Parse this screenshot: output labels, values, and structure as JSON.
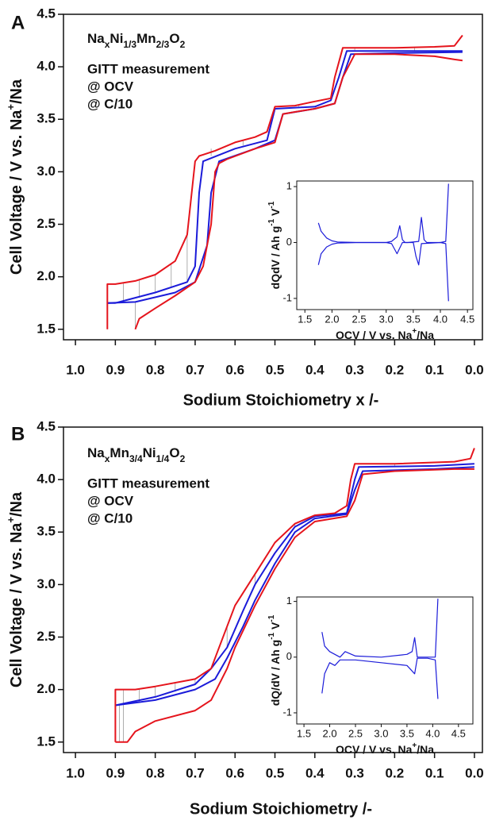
{
  "chart_data": [
    {
      "type": "line",
      "panel_label": "A",
      "formula_parts": [
        "Na",
        "x",
        "Ni",
        "1/3",
        "Mn",
        "2/3",
        "O",
        "2"
      ],
      "x_label": "Sodium Stoichiometry x /-",
      "y_label_parts": [
        "Cell Voltage / V vs. Na",
        "+",
        "/Na"
      ],
      "xlim": [
        1.03,
        -0.02
      ],
      "ylim": [
        1.4,
        4.5
      ],
      "xticks": [
        {
          "value": 1,
          "label": "1.0"
        },
        0.9,
        0.8,
        0.7,
        0.6,
        0.5,
        0.4,
        0.3,
        0.2,
        0.1,
        {
          "value": 0,
          "label": "0.0"
        }
      ],
      "yticks": [
        1.5,
        {
          "value": 2,
          "label": "2.0"
        },
        2.5,
        {
          "value": 3,
          "label": "3.0"
        },
        3.5,
        {
          "value": 4,
          "label": "4.0"
        },
        4.5
      ],
      "series": [
        {
          "name": "GITT measurement",
          "color": "#9a9a9a",
          "lines": [
            {
              "x": [
                0.88,
                0.88
              ],
              "values": [
                1.77,
                1.94
              ]
            },
            {
              "x": [
                0.84,
                0.84
              ],
              "values": [
                1.8,
                1.97
              ]
            },
            {
              "x": [
                0.8,
                0.8
              ],
              "values": [
                1.85,
                2.02
              ]
            },
            {
              "x": [
                0.76,
                0.76
              ],
              "values": [
                1.9,
                2.12
              ]
            },
            {
              "x": [
                0.72,
                0.72
              ],
              "values": [
                1.95,
                2.4
              ]
            },
            {
              "x": [
                0.66,
                0.66
              ],
              "values": [
                3.15,
                3.22
              ]
            },
            {
              "x": [
                0.58,
                0.58
              ],
              "values": [
                3.25,
                3.3
              ]
            },
            {
              "x": [
                0.44,
                0.44
              ],
              "values": [
                3.62,
                3.64
              ]
            },
            {
              "x": [
                0.3,
                0.3
              ],
              "values": [
                4.15,
                4.18
              ]
            },
            {
              "x": [
                0.15,
                0.15
              ],
              "values": [
                4.15,
                4.18
              ]
            },
            {
              "x": [
                0.85,
                0.85
              ],
              "values": [
                1.5,
                1.76
              ]
            },
            {
              "x": [
                0.92,
                0.92
              ],
              "values": [
                1.5,
                1.75
              ]
            }
          ]
        },
        {
          "name": "@ OCV",
          "color": "#1b1bd9",
          "lines": [
            {
              "x": [
                0.92,
                0.9,
                0.85,
                0.8,
                0.72,
                0.7,
                0.69,
                0.68,
                0.6,
                0.52,
                0.5,
                0.4,
                0.36,
                0.34,
                0.32,
                0.2,
                0.03
              ],
              "values": [
                1.75,
                1.75,
                1.8,
                1.85,
                1.95,
                2.1,
                2.8,
                3.1,
                3.22,
                3.3,
                3.6,
                3.62,
                3.68,
                3.9,
                4.15,
                4.15,
                4.15
              ]
            },
            {
              "x": [
                0.92,
                0.85,
                0.75,
                0.7,
                0.67,
                0.66,
                0.64,
                0.55,
                0.5,
                0.48,
                0.4,
                0.35,
                0.33,
                0.31,
                0.2,
                0.03
              ],
              "values": [
                1.75,
                1.76,
                1.85,
                1.95,
                2.3,
                2.8,
                3.1,
                3.22,
                3.3,
                3.55,
                3.6,
                3.65,
                3.9,
                4.12,
                4.13,
                4.14
              ]
            }
          ]
        },
        {
          "name": "@ C/10",
          "color": "#e5141c",
          "lines": [
            {
              "x": [
                0.92,
                0.92,
                0.9,
                0.85,
                0.8,
                0.75,
                0.72,
                0.7,
                0.69,
                0.65,
                0.6,
                0.55,
                0.52,
                0.5,
                0.45,
                0.4,
                0.36,
                0.35,
                0.33,
                0.3,
                0.2,
                0.1,
                0.05,
                0.03
              ],
              "values": [
                1.5,
                1.93,
                1.93,
                1.96,
                2.02,
                2.15,
                2.4,
                3.1,
                3.15,
                3.2,
                3.28,
                3.33,
                3.38,
                3.62,
                3.63,
                3.67,
                3.7,
                3.9,
                4.18,
                4.18,
                4.18,
                4.19,
                4.2,
                4.3
              ]
            },
            {
              "x": [
                0.85,
                0.84,
                0.8,
                0.75,
                0.7,
                0.68,
                0.66,
                0.65,
                0.64,
                0.62,
                0.55,
                0.5,
                0.48,
                0.45,
                0.4,
                0.35,
                0.33,
                0.3,
                0.25,
                0.2,
                0.1,
                0.05,
                0.03
              ],
              "values": [
                1.5,
                1.6,
                1.7,
                1.82,
                1.95,
                2.1,
                2.5,
                3.0,
                3.08,
                3.12,
                3.22,
                3.28,
                3.55,
                3.57,
                3.6,
                3.65,
                3.9,
                4.12,
                4.12,
                4.12,
                4.1,
                4.07,
                4.06
              ]
            }
          ]
        }
      ],
      "inset": {
        "type": "line",
        "x_label_parts": [
          "OCV / V vs. Na",
          "+",
          "/Na"
        ],
        "y_label_parts": [
          "dQdV / Ah g",
          "-1",
          " V",
          "-1"
        ],
        "xlim": [
          1.35,
          4.6
        ],
        "ylim": [
          -1.2,
          1.1
        ],
        "xticks": [
          1.5,
          {
            "value": 2,
            "label": "2.0"
          },
          2.5,
          {
            "value": 3,
            "label": "3.0"
          },
          3.5,
          {
            "value": 4,
            "label": "4.0"
          },
          4.5
        ],
        "yticks": [
          -1,
          0,
          1
        ],
        "series": [
          {
            "color": "#1b1bd9",
            "lines": [
              {
                "x": [
                  1.75,
                  1.8,
                  1.9,
                  2.0,
                  2.1,
                  2.5,
                  3.0,
                  3.1,
                  3.2,
                  3.25,
                  3.3,
                  3.35,
                  3.4,
                  3.6,
                  3.65,
                  3.7,
                  3.75,
                  4.0,
                  4.1,
                  4.15
                ],
                "values": [
                  0.35,
                  0.2,
                  0.08,
                  0.03,
                  0.01,
                  0.0,
                  0.0,
                  0.02,
                  0.1,
                  0.3,
                  0.05,
                  0.0,
                  0.0,
                  0.02,
                  0.45,
                  0.05,
                  0.0,
                  0.0,
                  0.02,
                  1.05
                ]
              },
              {
                "x": [
                  1.75,
                  1.8,
                  1.9,
                  2.0,
                  2.1,
                  2.5,
                  3.0,
                  3.1,
                  3.2,
                  3.25,
                  3.3,
                  3.5,
                  3.55,
                  3.6,
                  3.65,
                  4.0,
                  4.1,
                  4.15
                ],
                "values": [
                  -0.4,
                  -0.2,
                  -0.08,
                  -0.03,
                  -0.01,
                  0,
                  0,
                  -0.02,
                  -0.2,
                  -0.1,
                  0,
                  0,
                  -0.25,
                  -0.4,
                  -0.02,
                  0,
                  -0.02,
                  -1.05
                ]
              }
            ]
          }
        ]
      }
    },
    {
      "type": "line",
      "panel_label": "B",
      "formula_parts": [
        "Na",
        "x",
        "Mn",
        "3/4",
        "Ni",
        "1/4",
        "O",
        "2"
      ],
      "x_label": "Sodium Stoichiometry /-",
      "y_label_parts": [
        "Cell Voltage / V vs. Na",
        "+",
        "/Na"
      ],
      "xlim": [
        1.03,
        -0.02
      ],
      "ylim": [
        1.4,
        4.5
      ],
      "xticks": [
        {
          "value": 1,
          "label": "1.0"
        },
        0.9,
        0.8,
        0.7,
        0.6,
        0.5,
        0.4,
        0.3,
        0.2,
        0.1,
        {
          "value": 0,
          "label": "0.0"
        }
      ],
      "yticks": [
        1.5,
        {
          "value": 2,
          "label": "2.0"
        },
        2.5,
        {
          "value": 3,
          "label": "3.0"
        },
        3.5,
        {
          "value": 4,
          "label": "4.0"
        },
        4.5
      ],
      "series": [
        {
          "name": "GITT measurement",
          "color": "#9a9a9a",
          "lines": [
            {
              "x": [
                0.88,
                0.88
              ],
              "values": [
                1.86,
                2.0
              ]
            },
            {
              "x": [
                0.84,
                0.84
              ],
              "values": [
                1.88,
                2.0
              ]
            },
            {
              "x": [
                0.8,
                0.8
              ],
              "values": [
                1.93,
                2.03
              ]
            },
            {
              "x": [
                0.75,
                0.75
              ],
              "values": [
                1.98,
                2.06
              ]
            },
            {
              "x": [
                0.7,
                0.7
              ],
              "values": [
                2.05,
                2.1
              ]
            },
            {
              "x": [
                0.62,
                0.62
              ],
              "values": [
                2.4,
                2.6
              ]
            },
            {
              "x": [
                0.55,
                0.55
              ],
              "values": [
                3.0,
                3.1
              ]
            },
            {
              "x": [
                0.45,
                0.45
              ],
              "values": [
                3.55,
                3.58
              ]
            },
            {
              "x": [
                0.2,
                0.2
              ],
              "values": [
                4.13,
                4.15
              ]
            },
            {
              "x": [
                0.89,
                0.89
              ],
              "values": [
                1.5,
                1.86
              ]
            },
            {
              "x": [
                0.88,
                0.88
              ],
              "values": [
                1.5,
                1.86
              ]
            }
          ]
        },
        {
          "name": "@ OCV",
          "color": "#1b1bd9",
          "lines": [
            {
              "x": [
                0.9,
                0.8,
                0.7,
                0.66,
                0.62,
                0.58,
                0.55,
                0.5,
                0.45,
                0.4,
                0.32,
                0.3,
                0.29,
                0.1,
                0.0
              ],
              "values": [
                1.85,
                1.93,
                2.05,
                2.2,
                2.4,
                2.75,
                3.0,
                3.3,
                3.55,
                3.65,
                3.68,
                4.0,
                4.12,
                4.13,
                4.15
              ]
            },
            {
              "x": [
                0.9,
                0.8,
                0.7,
                0.65,
                0.62,
                0.58,
                0.55,
                0.5,
                0.45,
                0.4,
                0.32,
                0.3,
                0.28,
                0.1,
                0.0
              ],
              "values": [
                1.85,
                1.9,
                2.0,
                2.1,
                2.3,
                2.6,
                2.85,
                3.2,
                3.5,
                3.63,
                3.67,
                3.9,
                4.08,
                4.1,
                4.12
              ]
            }
          ]
        },
        {
          "name": "@ C/10",
          "color": "#e5141c",
          "lines": [
            {
              "x": [
                0.9,
                0.9,
                0.85,
                0.8,
                0.7,
                0.66,
                0.64,
                0.6,
                0.55,
                0.5,
                0.45,
                0.4,
                0.35,
                0.32,
                0.31,
                0.3,
                0.2,
                0.05,
                0.01,
                0.0
              ],
              "values": [
                1.5,
                2.0,
                2.0,
                2.03,
                2.1,
                2.2,
                2.4,
                2.8,
                3.1,
                3.4,
                3.58,
                3.66,
                3.68,
                3.75,
                4.0,
                4.15,
                4.15,
                4.17,
                4.2,
                4.3
              ]
            },
            {
              "x": [
                0.9,
                0.87,
                0.85,
                0.8,
                0.7,
                0.66,
                0.62,
                0.6,
                0.55,
                0.5,
                0.45,
                0.4,
                0.32,
                0.3,
                0.28,
                0.2,
                0.05,
                0.0
              ],
              "values": [
                1.5,
                1.5,
                1.6,
                1.7,
                1.8,
                1.9,
                2.2,
                2.4,
                2.8,
                3.15,
                3.45,
                3.6,
                3.65,
                3.8,
                4.05,
                4.08,
                4.1,
                4.1
              ]
            }
          ]
        }
      ],
      "inset": {
        "type": "line",
        "x_label_parts": [
          "OCV / V vs. Na",
          "+",
          "/Na"
        ],
        "y_label_parts": [
          "dQ/dV / Ah g",
          "-1",
          " V",
          "-1"
        ],
        "xlim": [
          1.36,
          4.78
        ],
        "ylim": [
          -1.2,
          1.08
        ],
        "xticks": [
          1.5,
          {
            "value": 2,
            "label": "2.0"
          },
          2.5,
          {
            "value": 3,
            "label": "3.0"
          },
          3.5,
          {
            "value": 4,
            "label": "4.0"
          },
          4.5
        ],
        "yticks": [
          -1,
          0,
          1
        ],
        "series": [
          {
            "color": "#1b1bd9",
            "lines": [
              {
                "x": [
                  1.85,
                  1.9,
                  2.0,
                  2.1,
                  2.2,
                  2.3,
                  2.5,
                  3.0,
                  3.5,
                  3.6,
                  3.65,
                  3.7,
                  3.9,
                  4.05,
                  4.1
                ],
                "values": [
                  0.45,
                  0.2,
                  0.1,
                  0.05,
                  0.0,
                  0.1,
                  0.02,
                  0.0,
                  0.05,
                  0.1,
                  0.35,
                  0.0,
                  0.0,
                  0.0,
                  1.05
                ]
              },
              {
                "x": [
                  1.85,
                  1.9,
                  2.0,
                  2.1,
                  2.2,
                  2.5,
                  3.0,
                  3.5,
                  3.6,
                  3.65,
                  3.7,
                  3.9,
                  4.05,
                  4.1
                ],
                "values": [
                  -0.65,
                  -0.3,
                  -0.1,
                  -0.15,
                  -0.05,
                  -0.05,
                  -0.1,
                  -0.15,
                  -0.25,
                  -0.3,
                  -0.02,
                  -0.02,
                  -0.05,
                  -0.75
                ]
              }
            ]
          }
        ]
      }
    }
  ]
}
